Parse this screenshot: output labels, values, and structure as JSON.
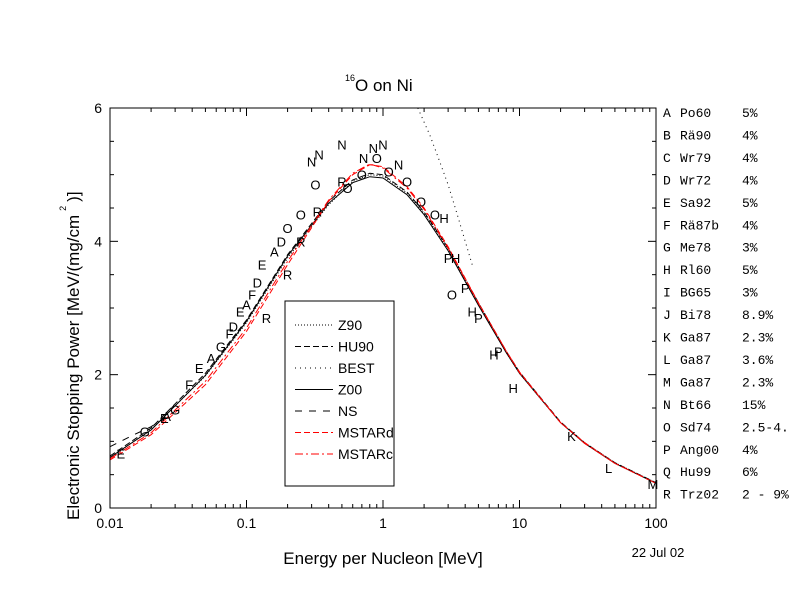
{
  "chart_data": {
    "type": "line",
    "title_sup": "16",
    "title": "O on Ni",
    "xlabel": "Energy per Nucleon [MeV]",
    "ylabel": "Electronic Stopping Power [MeV/(mg/cm",
    "ylabel_sup": "2",
    "ylabel_end": ")]",
    "date": "22 Jul 02",
    "x_scale": "log",
    "xlim": [
      0.01,
      100
    ],
    "ylim": [
      0,
      6
    ],
    "x_ticks": [
      {
        "v": 0.01,
        "label": "0.01"
      },
      {
        "v": 0.1,
        "label": "0.1"
      },
      {
        "v": 1,
        "label": "1"
      },
      {
        "v": 10,
        "label": "10"
      },
      {
        "v": 100,
        "label": "100"
      }
    ],
    "y_ticks": [
      {
        "v": 0,
        "label": "0"
      },
      {
        "v": 2,
        "label": "2"
      },
      {
        "v": 4,
        "label": "4"
      },
      {
        "v": 6,
        "label": "6"
      }
    ],
    "legend_placement": "center-left",
    "series": [
      {
        "name": "Z90",
        "style": "dotted",
        "color": "#000000",
        "x": [
          0.01,
          0.02,
          0.05,
          0.1,
          0.2,
          0.4,
          0.6,
          0.8,
          1,
          1.5,
          2,
          3,
          5,
          8,
          10,
          20,
          30,
          50,
          100
        ],
        "y": [
          0.75,
          1.18,
          1.98,
          2.78,
          3.75,
          4.55,
          4.9,
          5.0,
          4.98,
          4.72,
          4.42,
          3.88,
          3.06,
          2.33,
          2.02,
          1.28,
          0.98,
          0.68,
          0.38
        ]
      },
      {
        "name": "HU90",
        "style": "dashed",
        "color": "#000000",
        "x": [
          0.01,
          0.02,
          0.05,
          0.1,
          0.2,
          0.4,
          0.6,
          0.8,
          1,
          1.5,
          2,
          3,
          5,
          8,
          10,
          20,
          30,
          50,
          100
        ],
        "y": [
          0.78,
          1.2,
          2.02,
          2.82,
          3.8,
          4.6,
          4.92,
          5.02,
          5.0,
          4.74,
          4.44,
          3.9,
          3.08,
          2.35,
          2.04,
          1.29,
          0.98,
          0.68,
          0.38
        ]
      },
      {
        "name": "BEST",
        "style": "dotted-sparse",
        "color": "#000000",
        "x": [
          1.8,
          2.2,
          2.6,
          3,
          3.5,
          4,
          4.5
        ],
        "y": [
          6.0,
          5.6,
          5.2,
          4.85,
          4.4,
          4.0,
          3.65
        ]
      },
      {
        "name": "Z00",
        "style": "solid",
        "color": "#000000",
        "x": [
          0.01,
          0.02,
          0.05,
          0.1,
          0.2,
          0.4,
          0.6,
          0.8,
          1,
          1.5,
          2,
          3,
          5,
          8,
          10,
          20,
          30,
          50,
          100
        ],
        "y": [
          0.76,
          1.17,
          1.99,
          2.8,
          3.78,
          4.57,
          4.88,
          4.97,
          4.95,
          4.7,
          4.4,
          3.86,
          3.04,
          2.33,
          2.02,
          1.28,
          0.97,
          0.67,
          0.37
        ]
      },
      {
        "name": "NS",
        "style": "long-dash",
        "color": "#000000",
        "x": [
          0.01,
          0.015,
          0.02,
          0.03
        ],
        "y": [
          0.92,
          1.1,
          1.22,
          1.45
        ]
      },
      {
        "name": "MSTARd",
        "style": "dashed",
        "color": "#ff0000",
        "x": [
          0.01,
          0.02,
          0.05,
          0.1,
          0.2,
          0.4,
          0.6,
          0.8,
          1,
          1.5,
          2,
          3,
          5,
          8,
          10,
          20,
          30,
          50,
          100
        ],
        "y": [
          0.72,
          1.1,
          1.85,
          2.65,
          3.65,
          4.6,
          5.0,
          5.15,
          5.12,
          4.82,
          4.5,
          3.92,
          3.08,
          2.35,
          2.04,
          1.28,
          0.98,
          0.67,
          0.37
        ]
      },
      {
        "name": "MSTARc",
        "style": "dash-dot",
        "color": "#ff0000",
        "x": [
          0.01,
          0.02,
          0.05,
          0.1,
          0.2,
          0.4,
          0.6,
          0.8,
          1,
          1.5,
          2,
          3,
          5,
          8,
          10,
          20,
          30,
          50,
          100
        ],
        "y": [
          0.74,
          1.13,
          1.9,
          2.7,
          3.7,
          4.62,
          5.02,
          5.16,
          5.1,
          4.8,
          4.48,
          3.9,
          3.07,
          2.35,
          2.03,
          1.28,
          0.97,
          0.67,
          0.37
        ]
      }
    ],
    "data_points": [
      {
        "m": "E",
        "x": 0.012,
        "y": 0.82
      },
      {
        "m": "E",
        "x": 0.025,
        "y": 1.35
      },
      {
        "m": "E",
        "x": 0.045,
        "y": 2.1
      },
      {
        "m": "E",
        "x": 0.09,
        "y": 2.95
      },
      {
        "m": "E",
        "x": 0.13,
        "y": 3.65
      },
      {
        "m": "G",
        "x": 0.018,
        "y": 1.15
      },
      {
        "m": "G",
        "x": 0.03,
        "y": 1.48
      },
      {
        "m": "G",
        "x": 0.065,
        "y": 2.42
      },
      {
        "m": "A",
        "x": 0.026,
        "y": 1.38
      },
      {
        "m": "A",
        "x": 0.055,
        "y": 2.25
      },
      {
        "m": "A",
        "x": 0.1,
        "y": 3.05
      },
      {
        "m": "A",
        "x": 0.16,
        "y": 3.85
      },
      {
        "m": "F",
        "x": 0.038,
        "y": 1.85
      },
      {
        "m": "F",
        "x": 0.075,
        "y": 2.62
      },
      {
        "m": "F",
        "x": 0.11,
        "y": 3.2
      },
      {
        "m": "D",
        "x": 0.08,
        "y": 2.72
      },
      {
        "m": "D",
        "x": 0.12,
        "y": 3.38
      },
      {
        "m": "D",
        "x": 0.18,
        "y": 4.0
      },
      {
        "m": "R",
        "x": 0.14,
        "y": 2.85
      },
      {
        "m": "R",
        "x": 0.2,
        "y": 3.5
      },
      {
        "m": "R",
        "x": 0.25,
        "y": 4.0
      },
      {
        "m": "R",
        "x": 0.33,
        "y": 4.45
      },
      {
        "m": "R",
        "x": 0.5,
        "y": 4.9
      },
      {
        "m": "O",
        "x": 0.2,
        "y": 4.2
      },
      {
        "m": "O",
        "x": 0.25,
        "y": 4.4
      },
      {
        "m": "O",
        "x": 0.32,
        "y": 4.85
      },
      {
        "m": "O",
        "x": 0.55,
        "y": 4.8
      },
      {
        "m": "O",
        "x": 0.7,
        "y": 5.0
      },
      {
        "m": "O",
        "x": 0.9,
        "y": 5.25
      },
      {
        "m": "O",
        "x": 1.1,
        "y": 5.05
      },
      {
        "m": "O",
        "x": 1.5,
        "y": 4.9
      },
      {
        "m": "O",
        "x": 1.9,
        "y": 4.6
      },
      {
        "m": "O",
        "x": 2.4,
        "y": 4.4
      },
      {
        "m": "O",
        "x": 3.2,
        "y": 3.2
      },
      {
        "m": "N",
        "x": 0.3,
        "y": 5.2
      },
      {
        "m": "N",
        "x": 0.34,
        "y": 5.3
      },
      {
        "m": "N",
        "x": 0.5,
        "y": 5.45
      },
      {
        "m": "N",
        "x": 0.72,
        "y": 5.25
      },
      {
        "m": "N",
        "x": 0.85,
        "y": 5.4
      },
      {
        "m": "N",
        "x": 1.0,
        "y": 5.45
      },
      {
        "m": "N",
        "x": 1.3,
        "y": 5.15
      },
      {
        "m": "H",
        "x": 2.8,
        "y": 4.35
      },
      {
        "m": "H",
        "x": 3.4,
        "y": 3.75
      },
      {
        "m": "H",
        "x": 4.5,
        "y": 2.95
      },
      {
        "m": "H",
        "x": 6.5,
        "y": 2.3
      },
      {
        "m": "H",
        "x": 9.0,
        "y": 1.8
      },
      {
        "m": "P",
        "x": 3.0,
        "y": 3.75
      },
      {
        "m": "P",
        "x": 4.0,
        "y": 3.3
      },
      {
        "m": "P",
        "x": 5.0,
        "y": 2.85
      },
      {
        "m": "P",
        "x": 7.0,
        "y": 2.35
      },
      {
        "m": "K",
        "x": 24,
        "y": 1.08
      },
      {
        "m": "L",
        "x": 45,
        "y": 0.6
      },
      {
        "m": "M",
        "x": 95,
        "y": 0.36
      }
    ]
  },
  "right_legend": [
    {
      "m": "A",
      "ref": "Po60",
      "err": "5%"
    },
    {
      "m": "B",
      "ref": "Rä90",
      "err": "4%"
    },
    {
      "m": "C",
      "ref": "Wr79",
      "err": "4%"
    },
    {
      "m": "D",
      "ref": "Wr72",
      "err": "4%"
    },
    {
      "m": "E",
      "ref": "Sa92",
      "err": "5%"
    },
    {
      "m": "F",
      "ref": "Rä87b",
      "err": "4%"
    },
    {
      "m": "G",
      "ref": "Me78",
      "err": "3%"
    },
    {
      "m": "H",
      "ref": "Rl60",
      "err": "5%"
    },
    {
      "m": "I",
      "ref": "BG65",
      "err": "3%"
    },
    {
      "m": "J",
      "ref": "Bi78",
      "err": "8.9%"
    },
    {
      "m": "K",
      "ref": "Ga87",
      "err": "2.3%"
    },
    {
      "m": "L",
      "ref": "Ga87",
      "err": "3.6%"
    },
    {
      "m": "M",
      "ref": "Ga87",
      "err": "2.3%"
    },
    {
      "m": "N",
      "ref": "Bt66",
      "err": "15%"
    },
    {
      "m": "O",
      "ref": "Sd74",
      "err": "2.5-4."
    },
    {
      "m": "P",
      "ref": "Ang00",
      "err": "4%"
    },
    {
      "m": "Q",
      "ref": "Hu99",
      "err": "6%"
    },
    {
      "m": "R",
      "ref": "Trz02",
      "err": "2 - 9%"
    }
  ]
}
